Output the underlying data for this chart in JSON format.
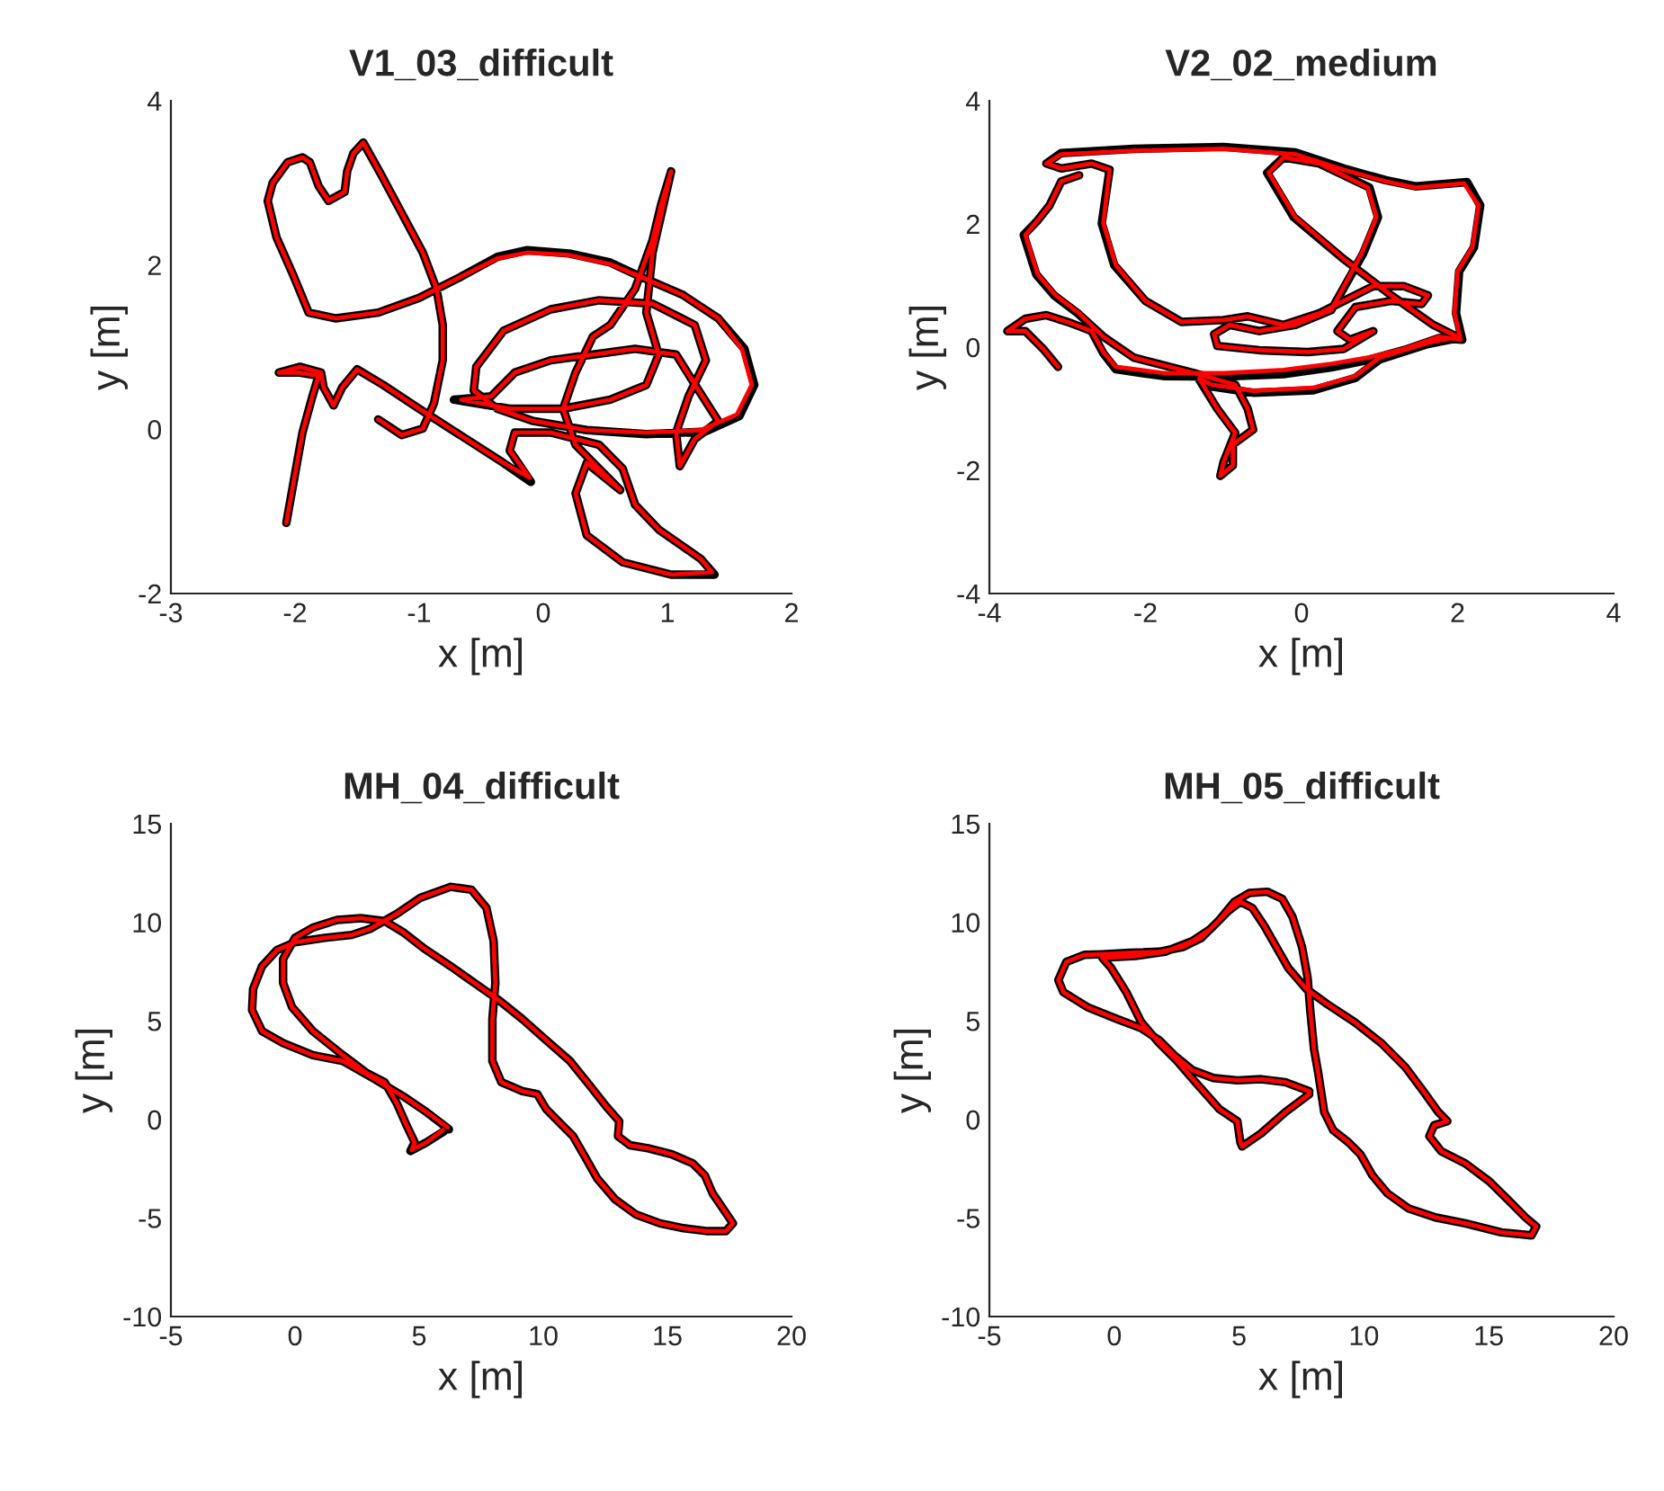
{
  "chart_data": [
    {
      "type": "line",
      "title": "V1_03_difficult",
      "xlabel": "x [m]",
      "ylabel": "y [m]",
      "xlim": [
        -3,
        2
      ],
      "ylim": [
        -2,
        4
      ],
      "xticks": [
        -3,
        -2,
        -1,
        0,
        1,
        2
      ],
      "yticks": [
        -2,
        0,
        2,
        4
      ],
      "series": [
        {
          "color": "#000000",
          "x": [
            -1.33,
            -1.14,
            -0.97,
            -0.88,
            -0.81,
            -0.81,
            -0.86,
            -0.97,
            -1.14,
            -1.31,
            -1.45,
            -1.53,
            -1.58,
            -1.6,
            -1.73,
            -1.81,
            -1.88,
            -1.94,
            -2.06,
            -2.18,
            -2.22,
            -2.15,
            -2.01,
            -1.89,
            -1.67,
            -1.33,
            -1.0,
            -0.66,
            -0.37,
            -0.13,
            0.21,
            0.54,
            0.78,
            1.12,
            1.41,
            1.62,
            1.7,
            1.58,
            1.3,
            0.83,
            0.35,
            -0.08,
            -0.37,
            -0.56,
            -0.54,
            -0.32,
            0.06,
            0.45,
            0.88,
            1.22,
            1.31,
            1.17,
            1.07,
            1.1,
            1.22,
            1.41,
            1.19,
            1.07,
            0.74,
            0.4,
            0.06,
            -0.23,
            -0.42,
            -0.72,
            -0.27,
            0.16,
            0.54,
            0.83,
            0.93,
            0.83,
            0.88,
            1.03,
            0.95,
            0.88,
            0.74,
            0.54,
            0.4,
            0.26,
            0.16,
            0.26,
            0.62,
            0.35,
            0.26,
            0.35,
            0.64,
            1.03,
            1.38,
            1.27,
            0.93,
            0.74,
            0.64,
            0.45,
            0.06,
            -0.23,
            -0.27,
            -0.1,
            -0.32,
            -0.66,
            -1.0,
            -1.29,
            -1.5,
            -1.62,
            -1.69,
            -1.77,
            -1.79,
            -1.96,
            -2.13,
            -1.96,
            -1.81,
            -1.86,
            -1.94,
            -2.01,
            -2.07
          ],
          "values": [
            0.12,
            -0.07,
            0.01,
            0.32,
            0.84,
            1.27,
            1.71,
            2.15,
            2.63,
            3.11,
            3.49,
            3.36,
            3.14,
            2.89,
            2.78,
            2.96,
            3.25,
            3.31,
            3.25,
            3.0,
            2.78,
            2.34,
            1.86,
            1.42,
            1.35,
            1.42,
            1.6,
            1.86,
            2.1,
            2.18,
            2.14,
            2.03,
            1.86,
            1.64,
            1.35,
            0.98,
            0.54,
            0.16,
            -0.03,
            -0.06,
            -0.01,
            0.1,
            0.25,
            0.47,
            0.76,
            1.2,
            1.46,
            1.57,
            1.53,
            1.27,
            0.84,
            0.4,
            -0.04,
            -0.45,
            -0.12,
            0.1,
            0.62,
            0.91,
            0.98,
            0.91,
            0.84,
            0.69,
            0.4,
            0.36,
            0.25,
            0.25,
            0.36,
            0.54,
            0.91,
            1.42,
            2.15,
            3.14,
            2.74,
            2.3,
            1.71,
            1.27,
            1.13,
            0.69,
            0.25,
            -0.19,
            -0.74,
            -0.41,
            -0.78,
            -1.29,
            -1.62,
            -1.77,
            -1.77,
            -1.58,
            -1.22,
            -0.92,
            -0.48,
            -0.19,
            -0.04,
            -0.04,
            -0.26,
            -0.64,
            -0.41,
            -0.08,
            0.25,
            0.54,
            0.73,
            0.51,
            0.29,
            0.51,
            0.69,
            0.76,
            0.69,
            0.69,
            0.65,
            0.4,
            -0.04,
            -0.63,
            -1.14
          ]
        },
        {
          "color": "#ff0000",
          "x": [
            -1.33,
            -1.14,
            -0.97,
            -0.88,
            -0.81,
            -0.81,
            -0.86,
            -0.97,
            -1.14,
            -1.31,
            -1.45,
            -1.53,
            -1.58,
            -1.6,
            -1.73,
            -1.81,
            -1.88,
            -1.94,
            -2.06,
            -2.18,
            -2.22,
            -2.15,
            -2.01,
            -1.89,
            -1.67,
            -1.33,
            -1.0,
            -0.66,
            -0.37,
            -0.13,
            0.21,
            0.54,
            0.78,
            1.12,
            1.41,
            1.6,
            1.68,
            1.56,
            1.27,
            0.83,
            0.35,
            -0.08,
            -0.37,
            -0.56,
            -0.54,
            -0.32,
            0.06,
            0.45,
            0.88,
            1.22,
            1.31,
            1.17,
            1.07,
            1.1,
            1.22,
            1.41,
            1.19,
            1.07,
            0.74,
            0.4,
            0.06,
            -0.23,
            -0.42,
            -0.66,
            -0.27,
            0.16,
            0.54,
            0.83,
            0.93,
            0.83,
            0.88,
            1.03,
            0.95,
            0.88,
            0.74,
            0.54,
            0.4,
            0.26,
            0.16,
            0.26,
            0.62,
            0.35,
            0.26,
            0.35,
            0.64,
            1.03,
            1.36,
            1.27,
            0.93,
            0.74,
            0.64,
            0.45,
            0.06,
            -0.23,
            -0.27,
            -0.11,
            -0.32,
            -0.66,
            -1.0,
            -1.29,
            -1.5,
            -1.62,
            -1.69,
            -1.77,
            -1.79,
            -1.96,
            -2.13,
            -1.96,
            -1.81,
            -1.86,
            -1.94,
            -2.01,
            -2.07
          ],
          "values": [
            0.12,
            -0.07,
            0.01,
            0.32,
            0.84,
            1.27,
            1.71,
            2.15,
            2.63,
            3.11,
            3.49,
            3.36,
            3.14,
            2.89,
            2.78,
            2.96,
            3.25,
            3.31,
            3.25,
            3.0,
            2.78,
            2.34,
            1.86,
            1.42,
            1.35,
            1.42,
            1.6,
            1.86,
            2.08,
            2.15,
            2.12,
            2.01,
            1.86,
            1.64,
            1.35,
            0.98,
            0.54,
            0.18,
            -0.01,
            -0.04,
            -0.01,
            0.1,
            0.25,
            0.47,
            0.76,
            1.2,
            1.46,
            1.57,
            1.53,
            1.27,
            0.84,
            0.4,
            -0.04,
            -0.45,
            -0.12,
            0.1,
            0.62,
            0.91,
            0.98,
            0.91,
            0.84,
            0.69,
            0.4,
            0.36,
            0.25,
            0.25,
            0.36,
            0.54,
            0.91,
            1.42,
            2.15,
            3.14,
            2.74,
            2.3,
            1.71,
            1.27,
            1.13,
            0.69,
            0.25,
            -0.19,
            -0.74,
            -0.41,
            -0.78,
            -1.29,
            -1.62,
            -1.77,
            -1.74,
            -1.58,
            -1.22,
            -0.92,
            -0.48,
            -0.19,
            -0.04,
            -0.04,
            -0.26,
            -0.59,
            -0.41,
            -0.08,
            0.25,
            0.54,
            0.73,
            0.51,
            0.29,
            0.51,
            0.69,
            0.76,
            0.69,
            0.69,
            0.65,
            0.4,
            -0.04,
            -0.63,
            -1.14
          ]
        }
      ]
    },
    {
      "type": "line",
      "title": "V2_02_medium",
      "xlabel": "x [m]",
      "ylabel": "y [m]",
      "xlim": [
        -4,
        4
      ],
      "ylim": [
        -4,
        4
      ],
      "xticks": [
        -4,
        -2,
        0,
        2,
        4
      ],
      "yticks": [
        -4,
        -2,
        0,
        2,
        4
      ],
      "series": [
        {
          "color": "#000000",
          "x": [
            -3.12,
            -3.31,
            -3.54,
            -3.77,
            -3.54,
            -3.27,
            -3.0,
            -2.69,
            -2.54,
            -2.38,
            -1.77,
            -1.0,
            -0.23,
            0.38,
            0.85,
            1.31,
            1.77,
            2.06,
            1.98,
            2.02,
            2.21,
            2.29,
            2.12,
            1.46,
            1.08,
            0.54,
            -0.08,
            -1.0,
            -2.15,
            -3.08,
            -3.27,
            -3.08,
            -2.69,
            -2.46,
            -2.56,
            -2.4,
            -2.0,
            -1.54,
            -1.0,
            -0.69,
            -0.23,
            0.23,
            0.62,
            0.92,
            1.31,
            1.62,
            1.54,
            1.15,
            0.69,
            0.46,
            0.62,
            0.92,
            0.54,
            0.08,
            -0.54,
            -1.08,
            -1.12,
            -0.92,
            -0.54,
            -0.08,
            0.38,
            0.79,
            0.98,
            0.87,
            0.23,
            -0.23,
            -0.44,
            -0.1,
            0.54,
            1.15,
            1.69,
            2.02,
            1.62,
            1.0,
            0.69,
            0.15,
            -0.62,
            -1.15,
            -1.31,
            -1.08,
            -0.85,
            -1.0,
            -1.04,
            -0.88,
            -0.88,
            -0.62,
            -0.69,
            -0.85,
            -1.38,
            -2.15,
            -2.54,
            -2.87,
            -3.17,
            -3.4,
            -3.56,
            -3.38,
            -3.23,
            -3.08,
            -2.85
          ],
          "values": [
            -0.32,
            -0.03,
            0.26,
            0.26,
            0.46,
            0.52,
            0.41,
            0.26,
            -0.1,
            -0.36,
            -0.47,
            -0.48,
            -0.44,
            -0.33,
            -0.21,
            -0.05,
            0.15,
            0.12,
            0.55,
            1.23,
            1.62,
            2.3,
            2.68,
            2.61,
            2.71,
            2.9,
            3.16,
            3.25,
            3.22,
            3.15,
            2.98,
            2.9,
            2.98,
            2.88,
            2.01,
            1.33,
            0.75,
            0.41,
            0.44,
            0.5,
            0.36,
            0.55,
            0.8,
            0.99,
            0.99,
            0.84,
            0.7,
            0.75,
            0.65,
            0.26,
            0.12,
            0.26,
            -0.03,
            -0.08,
            -0.05,
            0.02,
            0.21,
            0.36,
            0.26,
            0.36,
            0.6,
            1.52,
            2.11,
            2.59,
            2.98,
            3.08,
            2.83,
            2.11,
            1.43,
            0.84,
            0.36,
            0.15,
            0.05,
            -0.2,
            -0.5,
            -0.7,
            -0.74,
            -0.64,
            -0.53,
            -1.0,
            -1.39,
            -1.87,
            -2.09,
            -1.92,
            -1.58,
            -1.34,
            -1.0,
            -0.61,
            -0.42,
            -0.17,
            0.17,
            0.55,
            0.84,
            1.18,
            1.82,
            2.06,
            2.3,
            2.69,
            2.79
          ]
        },
        {
          "color": "#ff0000",
          "x": [
            -3.12,
            -3.31,
            -3.54,
            -3.77,
            -3.54,
            -3.27,
            -3.0,
            -2.69,
            -2.54,
            -2.38,
            -1.77,
            -1.0,
            -0.23,
            0.38,
            0.85,
            1.31,
            1.77,
            2.04,
            1.96,
            2.0,
            2.19,
            2.27,
            2.08,
            1.46,
            1.08,
            0.54,
            -0.08,
            -1.0,
            -2.15,
            -3.08,
            -3.27,
            -3.08,
            -2.69,
            -2.46,
            -2.54,
            -2.38,
            -2.0,
            -1.54,
            -1.0,
            -0.69,
            -0.23,
            0.23,
            0.62,
            0.92,
            1.31,
            1.62,
            1.54,
            1.15,
            0.69,
            0.46,
            0.62,
            0.92,
            0.54,
            0.08,
            -0.54,
            -1.08,
            -1.12,
            -0.92,
            -0.54,
            -0.08,
            0.38,
            0.77,
            0.96,
            0.85,
            0.23,
            -0.23,
            -0.42,
            -0.08,
            0.54,
            1.15,
            1.69,
            2.0,
            1.62,
            1.0,
            0.69,
            0.15,
            -0.62,
            -1.15,
            -1.31,
            -1.08,
            -0.85,
            -1.0,
            -1.04,
            -0.88,
            -0.88,
            -0.62,
            -0.69,
            -0.85,
            -1.38,
            -2.15,
            -2.54,
            -2.85,
            -3.15,
            -3.38,
            -3.54,
            -3.38,
            -3.23,
            -3.08,
            -2.85
          ],
          "values": [
            -0.32,
            -0.03,
            0.26,
            0.26,
            0.46,
            0.52,
            0.41,
            0.26,
            -0.08,
            -0.32,
            -0.42,
            -0.42,
            -0.37,
            -0.27,
            -0.17,
            -0.03,
            0.17,
            0.12,
            0.55,
            1.23,
            1.62,
            2.3,
            2.66,
            2.59,
            2.69,
            2.88,
            3.13,
            3.22,
            3.19,
            3.13,
            2.98,
            2.9,
            2.98,
            2.88,
            2.01,
            1.33,
            0.75,
            0.41,
            0.44,
            0.5,
            0.36,
            0.55,
            0.8,
            0.99,
            0.99,
            0.84,
            0.7,
            0.75,
            0.65,
            0.26,
            0.12,
            0.26,
            -0.03,
            -0.08,
            -0.05,
            0.02,
            0.21,
            0.36,
            0.26,
            0.36,
            0.6,
            1.52,
            2.11,
            2.59,
            2.98,
            3.08,
            2.83,
            2.11,
            1.43,
            0.84,
            0.36,
            0.17,
            0.07,
            -0.17,
            -0.47,
            -0.66,
            -0.71,
            -0.61,
            -0.51,
            -1.0,
            -1.39,
            -1.87,
            -2.09,
            -1.92,
            -1.58,
            -1.34,
            -1.0,
            -0.61,
            -0.42,
            -0.17,
            0.17,
            0.55,
            0.84,
            1.18,
            1.82,
            2.06,
            2.3,
            2.69,
            2.79
          ]
        }
      ]
    },
    {
      "type": "line",
      "title": "MH_04_difficult",
      "xlabel": "x [m]",
      "ylabel": "y [m]",
      "xlim": [
        -5,
        20
      ],
      "ylim": [
        -10,
        15
      ],
      "xticks": [
        -5,
        0,
        5,
        10,
        15,
        20
      ],
      "yticks": [
        -10,
        -5,
        0,
        5,
        10,
        15
      ],
      "series": [
        {
          "color": "#000000",
          "x": [
            6.2,
            5.3,
            4.34,
            3.13,
            1.93,
            0.72,
            -0.48,
            -1.33,
            -1.73,
            -1.69,
            -1.33,
            -0.72,
            0.0,
            1.2,
            2.29,
            3.01,
            4.1,
            5.06,
            6.27,
            7.11,
            7.71,
            8.0,
            8.07,
            7.95,
            7.95,
            8.31,
            9.16,
            9.76,
            10.12,
            10.72,
            11.2,
            11.69,
            12.17,
            12.89,
            13.73,
            14.7,
            15.66,
            16.63,
            17.35,
            17.64,
            17.23,
            16.82,
            16.51,
            16.02,
            15.18,
            14.22,
            13.49,
            13.01,
            13.06,
            12.53,
            11.86,
            11.08,
            10.12,
            9.16,
            8.19,
            7.23,
            6.27,
            5.18,
            4.34,
            3.61,
            2.65,
            1.69,
            0.72,
            0.0,
            -0.48,
            -0.48,
            -0.12,
            0.72,
            1.93,
            2.89,
            3.61,
            4.1,
            4.53,
            4.82,
            4.65,
            5.3,
            6.0
          ],
          "values": [
            -0.5,
            0.37,
            1.19,
            2.1,
            2.96,
            3.26,
            3.87,
            4.48,
            5.55,
            6.62,
            7.77,
            8.6,
            8.99,
            9.21,
            9.36,
            9.66,
            10.43,
            11.25,
            11.8,
            11.65,
            10.73,
            9.05,
            6.92,
            5.09,
            2.96,
            1.89,
            1.43,
            1.28,
            0.52,
            -0.24,
            -0.85,
            -1.92,
            -2.99,
            -4.05,
            -4.82,
            -5.27,
            -5.52,
            -5.67,
            -5.67,
            -5.27,
            -4.51,
            -3.75,
            -2.84,
            -2.23,
            -1.77,
            -1.46,
            -1.31,
            -0.85,
            -0.09,
            0.67,
            1.74,
            2.96,
            4.02,
            5.09,
            6.07,
            6.92,
            7.77,
            8.69,
            9.51,
            10.06,
            10.21,
            10.12,
            9.73,
            9.21,
            8.14,
            6.92,
            5.7,
            4.48,
            3.26,
            2.35,
            1.89,
            0.82,
            -0.4,
            -1.16,
            -1.6,
            -1.16,
            -0.6
          ]
        },
        {
          "color": "#ff0000",
          "x": [
            6.14,
            5.3,
            4.34,
            3.13,
            1.93,
            0.72,
            -0.48,
            -1.33,
            -1.73,
            -1.69,
            -1.33,
            -0.72,
            0.0,
            1.2,
            2.29,
            3.01,
            4.1,
            5.06,
            6.27,
            7.11,
            7.71,
            8.0,
            8.07,
            7.95,
            7.95,
            8.31,
            9.16,
            9.76,
            10.12,
            10.72,
            11.2,
            11.69,
            12.17,
            12.89,
            13.73,
            14.7,
            15.66,
            16.63,
            17.35,
            17.64,
            17.23,
            16.82,
            16.51,
            16.02,
            15.18,
            14.22,
            13.49,
            13.01,
            13.06,
            12.53,
            11.86,
            11.08,
            10.12,
            9.16,
            8.19,
            7.23,
            6.27,
            5.18,
            4.34,
            3.61,
            2.65,
            1.69,
            0.72,
            0.0,
            -0.48,
            -0.48,
            -0.12,
            0.72,
            1.93,
            2.89,
            3.61,
            4.1,
            4.53,
            4.82,
            4.7,
            5.3,
            5.95
          ],
          "values": [
            -0.4,
            0.37,
            1.19,
            2.1,
            2.96,
            3.26,
            3.87,
            4.48,
            5.55,
            6.62,
            7.77,
            8.6,
            8.99,
            9.21,
            9.36,
            9.66,
            10.43,
            11.25,
            11.8,
            11.65,
            10.73,
            9.05,
            6.92,
            5.09,
            2.96,
            1.89,
            1.43,
            1.28,
            0.52,
            -0.24,
            -0.85,
            -1.92,
            -2.99,
            -4.05,
            -4.82,
            -5.27,
            -5.52,
            -5.67,
            -5.67,
            -5.27,
            -4.51,
            -3.75,
            -2.84,
            -2.23,
            -1.77,
            -1.46,
            -1.31,
            -0.85,
            -0.09,
            0.67,
            1.74,
            2.96,
            4.02,
            5.09,
            6.07,
            6.92,
            7.77,
            8.69,
            9.51,
            10.06,
            10.21,
            10.12,
            9.73,
            9.21,
            8.14,
            6.92,
            5.7,
            4.48,
            3.26,
            2.35,
            1.89,
            0.82,
            -0.4,
            -1.16,
            -1.55,
            -1.16,
            -0.55
          ]
        }
      ]
    },
    {
      "type": "line",
      "title": "MH_05_difficult",
      "xlabel": "x [m]",
      "ylabel": "y [m]",
      "xlim": [
        -5,
        20
      ],
      "ylim": [
        -10,
        15
      ],
      "xticks": [
        -5,
        0,
        5,
        10,
        15,
        20
      ],
      "yticks": [
        -10,
        -5,
        0,
        5,
        10,
        15
      ],
      "series": [
        {
          "color": "#000000",
          "x": [
            7.81,
            6.85,
            5.89,
            4.93,
            3.97,
            3.13,
            2.4,
            1.8,
            1.08,
            0.12,
            -1.08,
            -2.04,
            -2.24,
            -1.92,
            -1.2,
            -0.48,
            0.6,
            1.8,
            2.76,
            3.49,
            4.21,
            4.81,
            5.41,
            6.13,
            6.73,
            7.14,
            7.52,
            7.74,
            7.86,
            8.0,
            8.17,
            8.41,
            8.77,
            9.38,
            9.86,
            10.34,
            10.94,
            11.78,
            12.86,
            14.06,
            15.5,
            16.71,
            16.9,
            16.47,
            15.75,
            15.02,
            14.06,
            13.1,
            12.62,
            12.81,
            13.34,
            12.98,
            12.38,
            11.66,
            10.7,
            9.62,
            8.53,
            7.69,
            6.97,
            6.49,
            6.01,
            5.53,
            5.05,
            4.57,
            3.85,
            3.13,
            2.04,
            0.84,
            -0.48,
            -0.12,
            0.48,
            1.08,
            1.8,
            2.52,
            3.25,
            4.21,
            4.93,
            5.05,
            5.12,
            5.89,
            6.85,
            7.81
          ],
          "values": [
            1.43,
            1.89,
            2.04,
            1.98,
            2.1,
            2.5,
            3.26,
            4.02,
            4.63,
            5.09,
            5.7,
            6.46,
            7.07,
            7.99,
            8.35,
            8.38,
            8.45,
            8.51,
            8.75,
            9.21,
            10.12,
            11.04,
            11.49,
            11.55,
            11.19,
            10.27,
            8.75,
            7.23,
            5.4,
            3.57,
            2.35,
            0.37,
            -0.55,
            -1.16,
            -1.77,
            -2.84,
            -3.75,
            -4.51,
            -4.97,
            -5.27,
            -5.73,
            -5.88,
            -5.43,
            -4.97,
            -4.05,
            -3.14,
            -2.23,
            -1.62,
            -0.85,
            -0.3,
            -0.09,
            0.37,
            1.43,
            2.65,
            3.87,
            4.94,
            5.85,
            6.62,
            7.68,
            8.75,
            9.82,
            10.73,
            11.04,
            10.58,
            9.66,
            9.05,
            8.51,
            8.29,
            8.2,
            7.68,
            6.46,
            4.94,
            3.87,
            2.96,
            1.89,
            0.52,
            -0.09,
            -1.16,
            -1.37,
            -0.7,
            0.37,
            1.28
          ]
        },
        {
          "color": "#ff0000",
          "x": [
            7.81,
            6.85,
            5.89,
            4.93,
            3.97,
            3.13,
            2.4,
            1.8,
            1.08,
            0.12,
            -1.08,
            -2.04,
            -2.24,
            -1.92,
            -1.2,
            -0.48,
            0.6,
            1.8,
            2.76,
            3.49,
            4.21,
            4.81,
            5.41,
            6.13,
            6.73,
            7.14,
            7.52,
            7.74,
            7.86,
            8.0,
            8.17,
            8.41,
            8.77,
            9.38,
            9.86,
            10.34,
            10.94,
            11.78,
            12.86,
            14.06,
            15.5,
            16.71,
            16.9,
            16.47,
            15.75,
            15.02,
            14.06,
            13.1,
            12.62,
            12.81,
            13.34,
            12.98,
            12.38,
            11.66,
            10.7,
            9.62,
            8.53,
            7.69,
            6.97,
            6.49,
            6.01,
            5.53,
            5.05,
            4.57,
            3.85,
            3.13,
            2.04,
            0.84,
            -0.48,
            -0.12,
            0.48,
            1.08,
            1.8,
            2.52,
            3.25,
            4.21,
            4.93,
            5.05,
            5.12,
            5.89,
            6.85,
            7.81
          ],
          "values": [
            1.43,
            1.89,
            2.04,
            1.98,
            2.1,
            2.5,
            3.26,
            4.02,
            4.63,
            5.09,
            5.7,
            6.46,
            7.07,
            7.99,
            8.35,
            8.38,
            8.45,
            8.51,
            8.75,
            9.21,
            10.12,
            11.04,
            11.49,
            11.55,
            11.19,
            10.27,
            8.75,
            7.23,
            5.4,
            3.57,
            2.35,
            0.37,
            -0.55,
            -1.16,
            -1.77,
            -2.84,
            -3.75,
            -4.51,
            -4.97,
            -5.27,
            -5.73,
            -5.88,
            -5.43,
            -4.97,
            -4.05,
            -3.14,
            -2.23,
            -1.62,
            -0.85,
            -0.3,
            -0.09,
            0.37,
            1.43,
            2.65,
            3.87,
            4.94,
            5.85,
            6.62,
            7.68,
            8.75,
            9.82,
            10.73,
            11.04,
            10.58,
            9.66,
            9.05,
            8.51,
            8.29,
            8.2,
            7.68,
            6.46,
            4.94,
            3.87,
            2.96,
            1.89,
            0.52,
            -0.09,
            -1.16,
            -1.37,
            -0.7,
            0.37,
            1.28
          ]
        }
      ]
    }
  ]
}
